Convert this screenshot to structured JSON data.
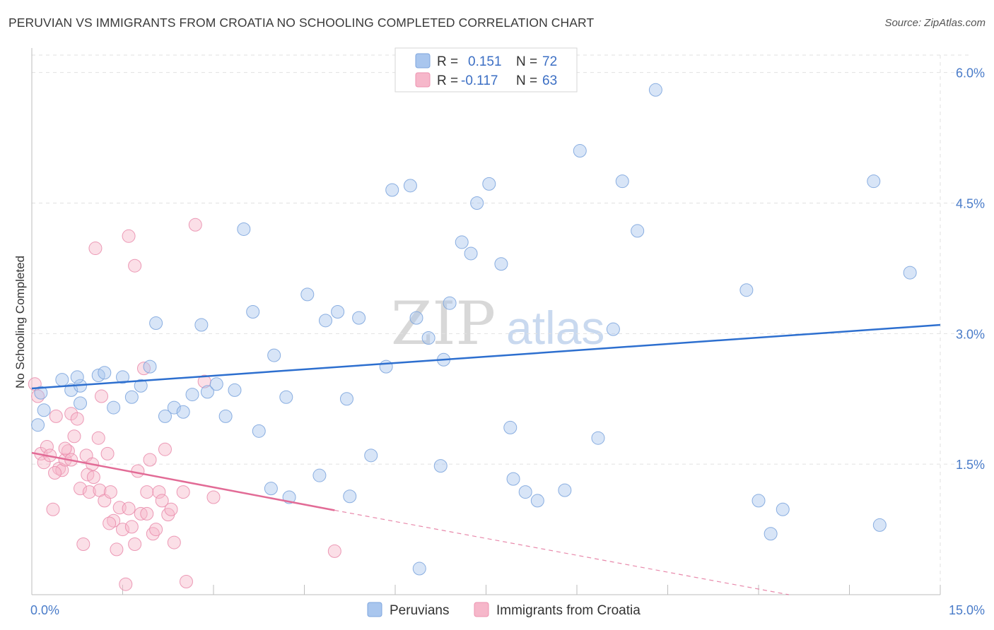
{
  "title": "PERUVIAN VS IMMIGRANTS FROM CROATIA NO SCHOOLING COMPLETED CORRELATION CHART",
  "source": "Source: ZipAtlas.com",
  "watermark": {
    "zip": "ZIP",
    "atlas": "atlas"
  },
  "legend": {
    "r_label": "R =",
    "n_label": "N =",
    "rows": [
      {
        "r": "0.151",
        "n": "72",
        "color": "#a9c6ee"
      },
      {
        "r": "-0.117",
        "n": "63",
        "color": "#f6b7ca"
      }
    ]
  },
  "colors": {
    "blue_fill": "#a9c6ee",
    "blue_line": "#2d6fcf",
    "pink_fill": "#f6b7ca",
    "pink_line": "#e26b96",
    "tick_text": "#4a7cc9"
  },
  "chart_data": {
    "type": "scatter",
    "title": "PERUVIAN VS IMMIGRANTS FROM CROATIA NO SCHOOLING COMPLETED CORRELATION CHART",
    "xlabel": "",
    "ylabel": "No Schooling Completed",
    "xlim": [
      0,
      15
    ],
    "ylim": [
      0,
      6.2
    ],
    "x_tick_labels": [
      {
        "v": 0,
        "t": "0.0%"
      },
      {
        "v": 15,
        "t": "15.0%"
      }
    ],
    "y_tick_labels": [
      {
        "v": 1.5,
        "t": "1.5%"
      },
      {
        "v": 3.0,
        "t": "3.0%"
      },
      {
        "v": 4.5,
        "t": "4.5%"
      },
      {
        "v": 6.0,
        "t": "6.0%"
      }
    ],
    "grid": true,
    "legend_position": "top-center",
    "series": [
      {
        "name": "Peruvians",
        "color": "#a9c6ee",
        "trend": {
          "x0": 0,
          "y0": 2.37,
          "x1": 15,
          "y1": 3.1
        },
        "points": [
          [
            0.1,
            1.95
          ],
          [
            0.2,
            2.12
          ],
          [
            0.5,
            2.47
          ],
          [
            0.65,
            2.35
          ],
          [
            0.8,
            2.2
          ],
          [
            0.8,
            2.4
          ],
          [
            1.1,
            2.52
          ],
          [
            1.2,
            2.55
          ],
          [
            1.35,
            2.15
          ],
          [
            1.5,
            2.5
          ],
          [
            1.65,
            2.27
          ],
          [
            1.8,
            2.4
          ],
          [
            1.95,
            2.62
          ],
          [
            2.05,
            3.12
          ],
          [
            2.2,
            2.05
          ],
          [
            2.35,
            2.15
          ],
          [
            2.5,
            2.1
          ],
          [
            2.65,
            2.3
          ],
          [
            2.8,
            3.1
          ],
          [
            2.9,
            2.33
          ],
          [
            3.05,
            2.42
          ],
          [
            3.2,
            2.05
          ],
          [
            3.35,
            2.35
          ],
          [
            3.5,
            4.2
          ],
          [
            3.65,
            3.25
          ],
          [
            3.75,
            1.88
          ],
          [
            3.95,
            1.22
          ],
          [
            4.0,
            2.75
          ],
          [
            4.2,
            2.27
          ],
          [
            4.25,
            1.12
          ],
          [
            4.55,
            3.45
          ],
          [
            4.75,
            1.37
          ],
          [
            4.85,
            3.15
          ],
          [
            5.05,
            3.25
          ],
          [
            5.2,
            2.25
          ],
          [
            5.25,
            1.13
          ],
          [
            5.4,
            3.18
          ],
          [
            5.6,
            1.6
          ],
          [
            5.85,
            2.62
          ],
          [
            5.95,
            4.65
          ],
          [
            6.25,
            4.7
          ],
          [
            6.35,
            3.18
          ],
          [
            6.4,
            0.3
          ],
          [
            6.55,
            2.95
          ],
          [
            6.75,
            1.48
          ],
          [
            6.8,
            2.7
          ],
          [
            6.9,
            3.35
          ],
          [
            7.1,
            4.05
          ],
          [
            7.25,
            3.92
          ],
          [
            7.35,
            4.5
          ],
          [
            7.55,
            4.72
          ],
          [
            7.75,
            3.8
          ],
          [
            7.9,
            1.92
          ],
          [
            7.95,
            1.33
          ],
          [
            8.15,
            1.18
          ],
          [
            8.35,
            1.08
          ],
          [
            8.8,
            1.2
          ],
          [
            9.05,
            5.1
          ],
          [
            9.35,
            1.8
          ],
          [
            9.6,
            3.05
          ],
          [
            9.75,
            4.75
          ],
          [
            10.0,
            4.18
          ],
          [
            10.3,
            5.8
          ],
          [
            11.8,
            3.5
          ],
          [
            12.0,
            1.08
          ],
          [
            12.2,
            0.7
          ],
          [
            12.4,
            0.98
          ],
          [
            13.9,
            4.75
          ],
          [
            14.0,
            0.8
          ],
          [
            14.5,
            3.7
          ],
          [
            0.15,
            2.32
          ],
          [
            0.75,
            2.5
          ]
        ]
      },
      {
        "name": "Immigrants from Croatia",
        "color": "#f6b7ca",
        "trend": {
          "x0": 0,
          "y0": 1.63,
          "x1": 5.0,
          "y1": 0.97,
          "dash_to_x": 12.5,
          "dash_to_y": 0.0
        },
        "points": [
          [
            0.05,
            2.42
          ],
          [
            0.1,
            2.28
          ],
          [
            0.15,
            1.62
          ],
          [
            0.2,
            1.52
          ],
          [
            0.25,
            1.7
          ],
          [
            0.3,
            1.6
          ],
          [
            0.35,
            0.98
          ],
          [
            0.4,
            2.05
          ],
          [
            0.45,
            1.45
          ],
          [
            0.5,
            1.43
          ],
          [
            0.55,
            1.55
          ],
          [
            0.6,
            1.65
          ],
          [
            0.65,
            2.08
          ],
          [
            0.7,
            1.82
          ],
          [
            0.75,
            2.02
          ],
          [
            0.8,
            1.22
          ],
          [
            0.85,
            0.58
          ],
          [
            0.9,
            1.6
          ],
          [
            0.92,
            1.38
          ],
          [
            0.95,
            1.18
          ],
          [
            1.0,
            1.5
          ],
          [
            1.05,
            3.98
          ],
          [
            1.1,
            1.8
          ],
          [
            1.12,
            1.2
          ],
          [
            1.15,
            2.28
          ],
          [
            1.2,
            1.08
          ],
          [
            1.25,
            1.62
          ],
          [
            1.3,
            1.18
          ],
          [
            1.35,
            0.85
          ],
          [
            1.4,
            0.52
          ],
          [
            1.45,
            1.0
          ],
          [
            1.5,
            0.75
          ],
          [
            1.55,
            0.12
          ],
          [
            1.6,
            0.99
          ],
          [
            1.65,
            0.78
          ],
          [
            1.7,
            0.58
          ],
          [
            1.75,
            1.42
          ],
          [
            1.8,
            0.93
          ],
          [
            1.85,
            2.6
          ],
          [
            1.9,
            1.18
          ],
          [
            1.95,
            1.55
          ],
          [
            2.0,
            0.7
          ],
          [
            2.05,
            0.75
          ],
          [
            2.1,
            1.18
          ],
          [
            2.15,
            1.08
          ],
          [
            2.2,
            1.67
          ],
          [
            2.25,
            0.92
          ],
          [
            2.3,
            0.98
          ],
          [
            2.35,
            0.6
          ],
          [
            2.5,
            1.18
          ],
          [
            2.55,
            0.15
          ],
          [
            2.7,
            4.25
          ],
          [
            2.85,
            2.45
          ],
          [
            3.0,
            1.12
          ],
          [
            1.6,
            4.12
          ],
          [
            1.7,
            3.78
          ],
          [
            5.0,
            0.5
          ],
          [
            0.55,
            1.68
          ],
          [
            0.65,
            1.55
          ],
          [
            1.02,
            1.35
          ],
          [
            0.38,
            1.4
          ],
          [
            1.28,
            0.82
          ],
          [
            1.9,
            0.93
          ]
        ]
      }
    ]
  }
}
